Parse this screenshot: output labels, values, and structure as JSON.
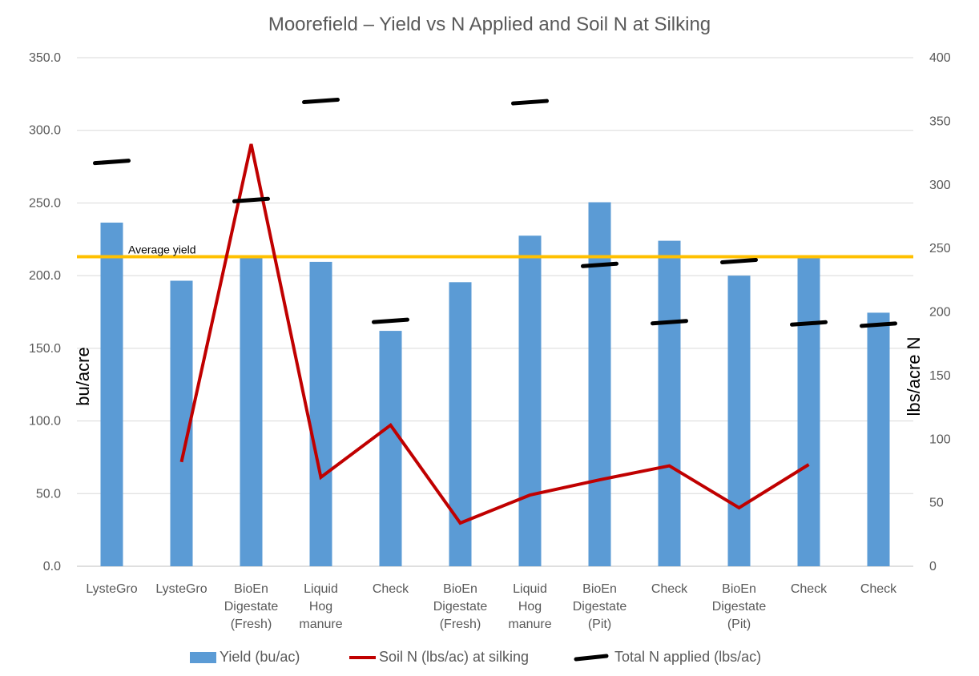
{
  "chart_data": {
    "type": "bar",
    "title": "Moorefield – Yield vs N Applied and Soil N at Silking",
    "ylabel": "bu/acre",
    "y2label": "lbs/acre N",
    "ylim": [
      0,
      350
    ],
    "y2lim": [
      0,
      400
    ],
    "yticks": [
      "0.0",
      "50.0",
      "100.0",
      "150.0",
      "200.0",
      "250.0",
      "300.0",
      "350.0"
    ],
    "y2ticks": [
      "0",
      "50",
      "100",
      "150",
      "200",
      "250",
      "300",
      "350",
      "400"
    ],
    "grid": true,
    "categories": [
      [
        "LysteGro"
      ],
      [
        "LysteGro"
      ],
      [
        "BioEn",
        "Digestate",
        "(Fresh)"
      ],
      [
        "Liquid",
        "Hog",
        "manure"
      ],
      [
        "Check"
      ],
      [
        "BioEn",
        "Digestate",
        "(Fresh)"
      ],
      [
        "Liquid",
        "Hog",
        "manure"
      ],
      [
        "BioEn",
        "Digestate",
        "(Pit)"
      ],
      [
        "Check"
      ],
      [
        "BioEn",
        "Digestate",
        "(Pit)"
      ],
      [
        "Check"
      ],
      [
        "Check"
      ]
    ],
    "series": [
      {
        "name": "Yield (bu/ac)",
        "type": "bar",
        "axis": "left",
        "color": "#5B9BD5",
        "values": [
          236.5,
          196.5,
          212.5,
          209.5,
          162.0,
          195.5,
          227.5,
          250.5,
          224.0,
          200.0,
          212.5,
          174.5
        ]
      },
      {
        "name": "Soil N (lbs/ac) at silking",
        "type": "line",
        "axis": "right",
        "color": "#C00000",
        "values": [
          null,
          82,
          332,
          70,
          111,
          34,
          56,
          68,
          79,
          46,
          80,
          null
        ]
      },
      {
        "name": "Total N applied (lbs/ac)",
        "type": "dash-marker",
        "axis": "right",
        "color": "#000000",
        "values": [
          318,
          null,
          288,
          366,
          193,
          null,
          365,
          237,
          192,
          240,
          191,
          190
        ]
      }
    ],
    "reference_line": {
      "label": "Average yield",
      "value": 213,
      "axis": "left",
      "color": "#FFC000"
    },
    "legend_position": "bottom"
  }
}
